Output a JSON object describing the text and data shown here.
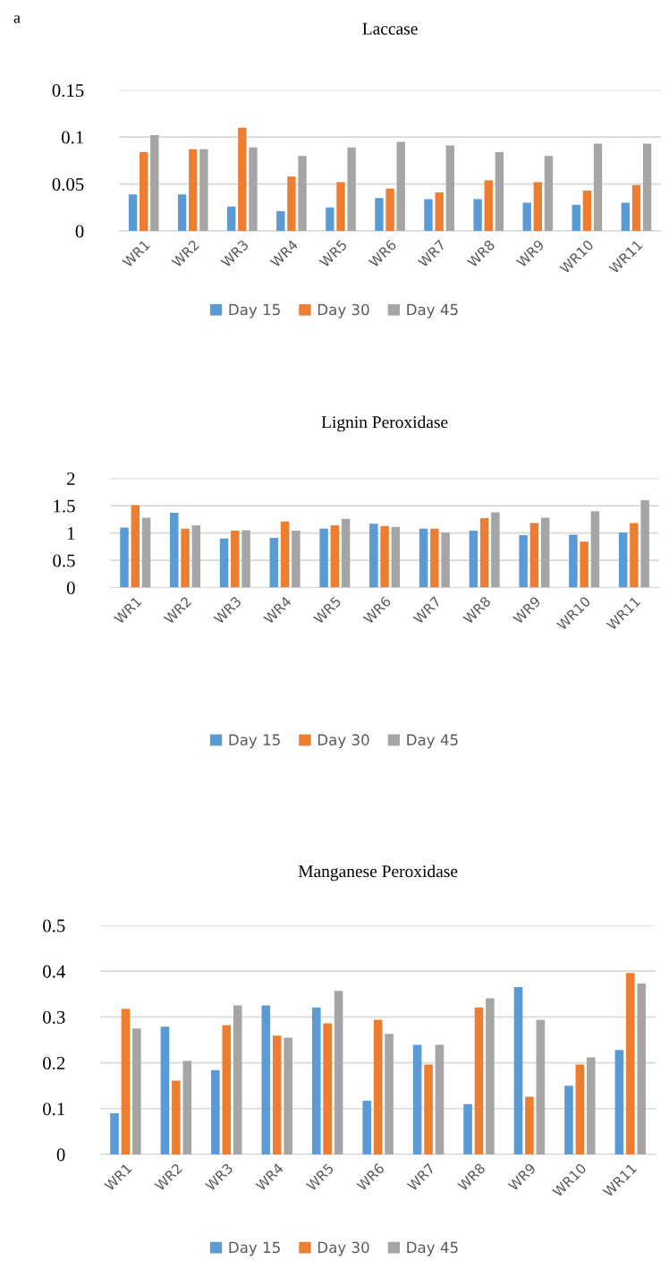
{
  "chart_data": [
    {
      "type": "bar",
      "title": "Laccase",
      "annotations": [
        "a"
      ],
      "categories": [
        "WR1",
        "WR2",
        "WR3",
        "WR4",
        "WR5",
        "WR6",
        "WR7",
        "WR8",
        "WR9",
        "WR10",
        "WR11"
      ],
      "series": [
        {
          "name": "Day 15",
          "color": "#5b9bd5",
          "values": [
            0.039,
            0.039,
            0.026,
            0.021,
            0.025,
            0.035,
            0.034,
            0.034,
            0.03,
            0.028,
            0.03
          ]
        },
        {
          "name": "Day 30",
          "color": "#ed7d31",
          "values": [
            0.084,
            0.087,
            0.11,
            0.058,
            0.052,
            0.045,
            0.041,
            0.054,
            0.052,
            0.043,
            0.049
          ]
        },
        {
          "name": "Day 45",
          "color": "#a5a5a5",
          "values": [
            0.102,
            0.087,
            0.089,
            0.08,
            0.089,
            0.095,
            0.091,
            0.084,
            0.08,
            0.093,
            0.093
          ]
        }
      ],
      "ylim": [
        0,
        0.15
      ],
      "yticks": [
        {
          "value": 0,
          "label": "0"
        },
        {
          "value": 0.05,
          "label": "0.05"
        },
        {
          "value": 0.1,
          "label": "0.1"
        },
        {
          "value": 0.15,
          "label": "0.15"
        }
      ],
      "grid": "y",
      "legend": "bottom"
    },
    {
      "type": "bar",
      "title": "Lignin Peroxidase",
      "categories": [
        "WR1",
        "WR2",
        "WR3",
        "WR4",
        "WR5",
        "WR6",
        "WR7",
        "WR8",
        "WR9",
        "WR10",
        "WR11"
      ],
      "series": [
        {
          "name": "Day 15",
          "color": "#5b9bd5",
          "values": [
            1.1,
            1.37,
            0.9,
            0.91,
            1.08,
            1.17,
            1.08,
            1.04,
            0.96,
            0.97,
            1.01
          ]
        },
        {
          "name": "Day 30",
          "color": "#ed7d31",
          "values": [
            1.51,
            1.08,
            1.04,
            1.21,
            1.14,
            1.13,
            1.08,
            1.27,
            1.18,
            0.84,
            1.18
          ]
        },
        {
          "name": "Day 45",
          "color": "#a5a5a5",
          "values": [
            1.28,
            1.14,
            1.05,
            1.04,
            1.26,
            1.11,
            1.01,
            1.38,
            1.28,
            1.4,
            1.6
          ]
        }
      ],
      "ylim": [
        0,
        2
      ],
      "yticks": [
        {
          "value": 0,
          "label": "0"
        },
        {
          "value": 0.5,
          "label": "0.5"
        },
        {
          "value": 1,
          "label": "1"
        },
        {
          "value": 1.5,
          "label": "1.5"
        },
        {
          "value": 2,
          "label": "2"
        }
      ],
      "grid": "y",
      "legend": "bottom"
    },
    {
      "type": "bar",
      "title": "Manganese Peroxidase",
      "categories": [
        "WR1",
        "WR2",
        "WR3",
        "WR4",
        "WR5",
        "WR6",
        "WR7",
        "WR8",
        "WR9",
        "WR10",
        "WR11"
      ],
      "series": [
        {
          "name": "Day 15",
          "color": "#5b9bd5",
          "values": [
            0.09,
            0.279,
            0.184,
            0.325,
            0.321,
            0.117,
            0.239,
            0.11,
            0.365,
            0.15,
            0.228
          ]
        },
        {
          "name": "Day 30",
          "color": "#ed7d31",
          "values": [
            0.318,
            0.161,
            0.282,
            0.259,
            0.286,
            0.294,
            0.196,
            0.321,
            0.126,
            0.196,
            0.396
          ]
        },
        {
          "name": "Day 45",
          "color": "#a5a5a5",
          "values": [
            0.275,
            0.204,
            0.325,
            0.255,
            0.357,
            0.263,
            0.239,
            0.341,
            0.294,
            0.212,
            0.373
          ]
        }
      ],
      "ylim": [
        0,
        0.5
      ],
      "yticks": [
        {
          "value": 0,
          "label": "0"
        },
        {
          "value": 0.1,
          "label": "0.1"
        },
        {
          "value": 0.2,
          "label": "0.2"
        },
        {
          "value": 0.3,
          "label": "0.3"
        },
        {
          "value": 0.4,
          "label": "0.4"
        },
        {
          "value": 0.5,
          "label": "0.5"
        }
      ],
      "grid": "y",
      "legend": "bottom"
    }
  ]
}
